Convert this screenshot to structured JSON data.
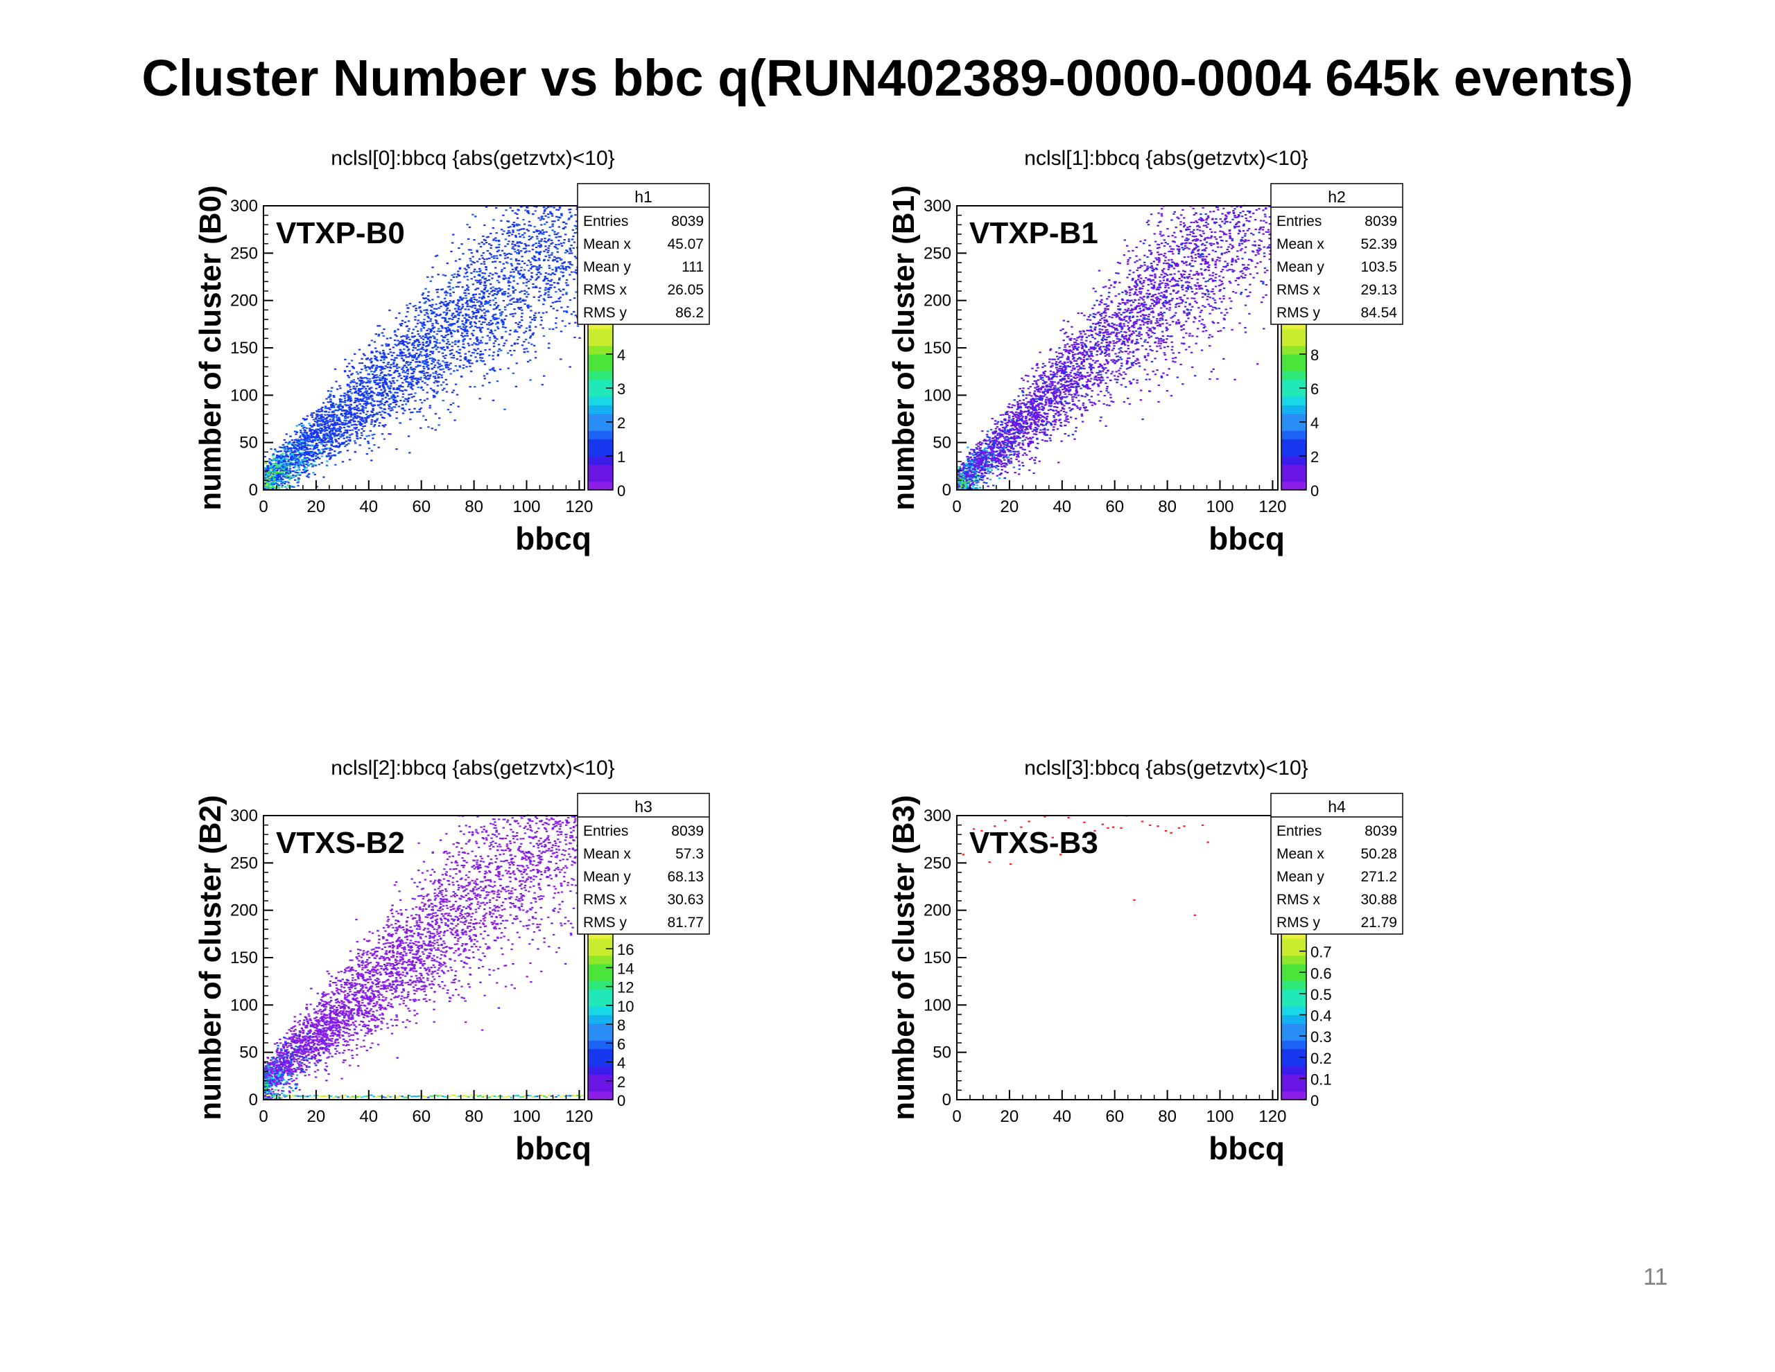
{
  "slide": {
    "title": "Cluster Number vs bbc q(RUN402389-0000-0004 645k events)",
    "page_number": "11"
  },
  "chart_data": [
    {
      "type": "heatmap",
      "title": "nclsl[0]:bbcq {abs(getzvtx)<10}",
      "label": "VTXP-B0",
      "xlabel": "bbcq",
      "ylabel": "number of cluster (B0)",
      "xlim": [
        0,
        122
      ],
      "ylim": [
        0,
        300
      ],
      "xticks": [
        "0",
        "20",
        "40",
        "60",
        "80",
        "100",
        "120"
      ],
      "yticks": [
        "0",
        "50",
        "100",
        "150",
        "200",
        "250",
        "300"
      ],
      "zticks": [
        "0",
        "1",
        "2",
        "3",
        "4"
      ],
      "zmax": 5,
      "stats": {
        "name": "h1",
        "Entries": "8039",
        "Mean x": "45.07",
        "Mean y": "111",
        "RMS x": "26.05",
        "RMS y": "86.2"
      },
      "distribution": {
        "shape": "band",
        "slope": 2.3,
        "offset": 8,
        "spread": 0.3,
        "density": 1.0,
        "dominant_color": "#2f6fe0"
      }
    },
    {
      "type": "heatmap",
      "title": "nclsl[1]:bbcq {abs(getzvtx)<10}",
      "label": "VTXP-B1",
      "xlabel": "bbcq",
      "ylabel": "number of cluster (B1)",
      "xlim": [
        0,
        122
      ],
      "ylim": [
        0,
        300
      ],
      "xticks": [
        "0",
        "20",
        "40",
        "60",
        "80",
        "100",
        "120"
      ],
      "yticks": [
        "0",
        "50",
        "100",
        "150",
        "200",
        "250",
        "300"
      ],
      "zticks": [
        "0",
        "2",
        "4",
        "6",
        "8"
      ],
      "zmax": 10,
      "stats": {
        "name": "h2",
        "Entries": "8039",
        "Mean x": "52.39",
        "Mean y": "103.5",
        "RMS x": "29.13",
        "RMS y": "84.54"
      },
      "distribution": {
        "shape": "band",
        "slope": 2.6,
        "offset": 5,
        "spread": 0.28,
        "density": 1.1,
        "dominant_color": "#3a1de8"
      }
    },
    {
      "type": "heatmap",
      "title": "nclsl[2]:bbcq {abs(getzvtx)<10}",
      "label": "VTXS-B2",
      "xlabel": "bbcq",
      "ylabel": "number of cluster (B2)",
      "xlim": [
        0,
        122
      ],
      "ylim": [
        0,
        300
      ],
      "xticks": [
        "0",
        "20",
        "40",
        "60",
        "80",
        "100",
        "120"
      ],
      "yticks": [
        "0",
        "50",
        "100",
        "150",
        "200",
        "250",
        "300"
      ],
      "zticks": [
        "0",
        "2",
        "4",
        "6",
        "8",
        "10",
        "12",
        "14",
        "16"
      ],
      "zmax": 18,
      "stats": {
        "name": "h3",
        "Entries": "8039",
        "Mean x": "57.3",
        "Mean y": "68.13",
        "RMS x": "30.63",
        "RMS y": "81.77"
      },
      "distribution": {
        "shape": "band_with_floor",
        "slope": 2.45,
        "offset": 18,
        "spread": 0.3,
        "density": 1.0,
        "dominant_color": "#6a17e6"
      }
    },
    {
      "type": "heatmap",
      "title": "nclsl[3]:bbcq {abs(getzvtx)<10}",
      "label": "VTXS-B3",
      "xlabel": "bbcq",
      "ylabel": "number of cluster (B3)",
      "xlim": [
        0,
        122
      ],
      "ylim": [
        0,
        300
      ],
      "xticks": [
        "0",
        "20",
        "40",
        "60",
        "80",
        "100",
        "120"
      ],
      "yticks": [
        "0",
        "50",
        "100",
        "150",
        "200",
        "250",
        "300"
      ],
      "zticks": [
        "0",
        "0.1",
        "0.2",
        "0.3",
        "0.4",
        "0.5",
        "0.6",
        "0.7"
      ],
      "zmax": 0.8,
      "stats": {
        "name": "h4",
        "Entries": "8039",
        "Mean x": "50.28",
        "Mean y": "271.2",
        "RMS x": "30.88",
        "RMS y": "21.79"
      },
      "distribution": {
        "shape": "sparse_top",
        "density": 0.02,
        "dominant_color": "#ff1e1e"
      }
    }
  ]
}
